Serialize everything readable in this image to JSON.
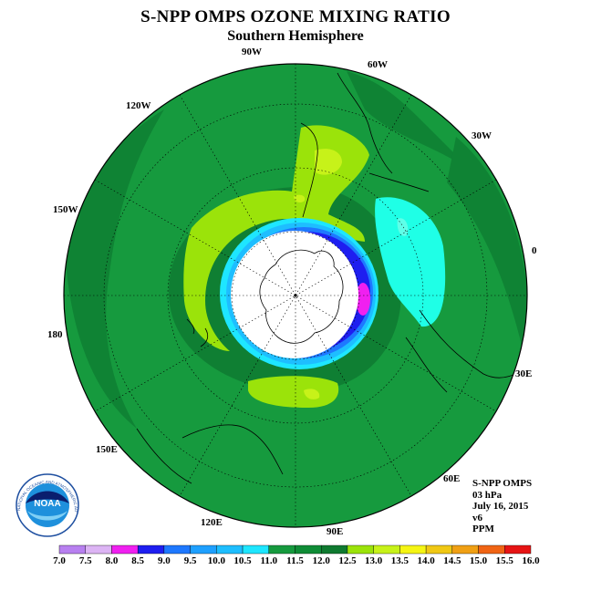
{
  "header": {
    "title": "S-NPP OMPS OZONE MIXING RATIO",
    "subtitle": "Southern Hemisphere"
  },
  "map": {
    "projection": "south-polar-stereographic",
    "longitude_labels": [
      "0",
      "30W",
      "60W",
      "90W",
      "120W",
      "150W",
      "180",
      "150E",
      "120E",
      "90E",
      "60E",
      "30E"
    ],
    "colors": {
      "background_fill": "#169a3e",
      "dark_band": "#0f7f33",
      "light_green": "#9be30a",
      "yellow_green": "#c7f219",
      "cyan": "#1fffe6",
      "white_hole": "#ffffff"
    }
  },
  "info": {
    "lines": [
      "S-NPP OMPS",
      "03 hPa",
      "July 16, 2015",
      "v6",
      "PPM"
    ]
  },
  "logo": {
    "text": "NOAA",
    "ring_text": "NATIONAL OCEANIC AND ATMOSPHERIC ADMINISTRATION"
  },
  "legend": {
    "ticks": [
      "7.0",
      "7.5",
      "8.0",
      "8.5",
      "9.0",
      "9.5",
      "10.0",
      "10.5",
      "11.0",
      "11.5",
      "12.0",
      "12.5",
      "13.0",
      "13.5",
      "14.0",
      "14.5",
      "15.0",
      "15.5",
      "16.0"
    ],
    "colors": [
      "#b880f0",
      "#dcb4f4",
      "#f020f0",
      "#1e1ef0",
      "#1e78ff",
      "#1ea0ff",
      "#1ebeff",
      "#1ee6ff",
      "#169a3e",
      "#0f8c36",
      "#0f7a30",
      "#9be30a",
      "#c7f219",
      "#f5f514",
      "#f0c814",
      "#f0a014",
      "#f06414",
      "#e61414",
      "#8c5a3c"
    ]
  }
}
